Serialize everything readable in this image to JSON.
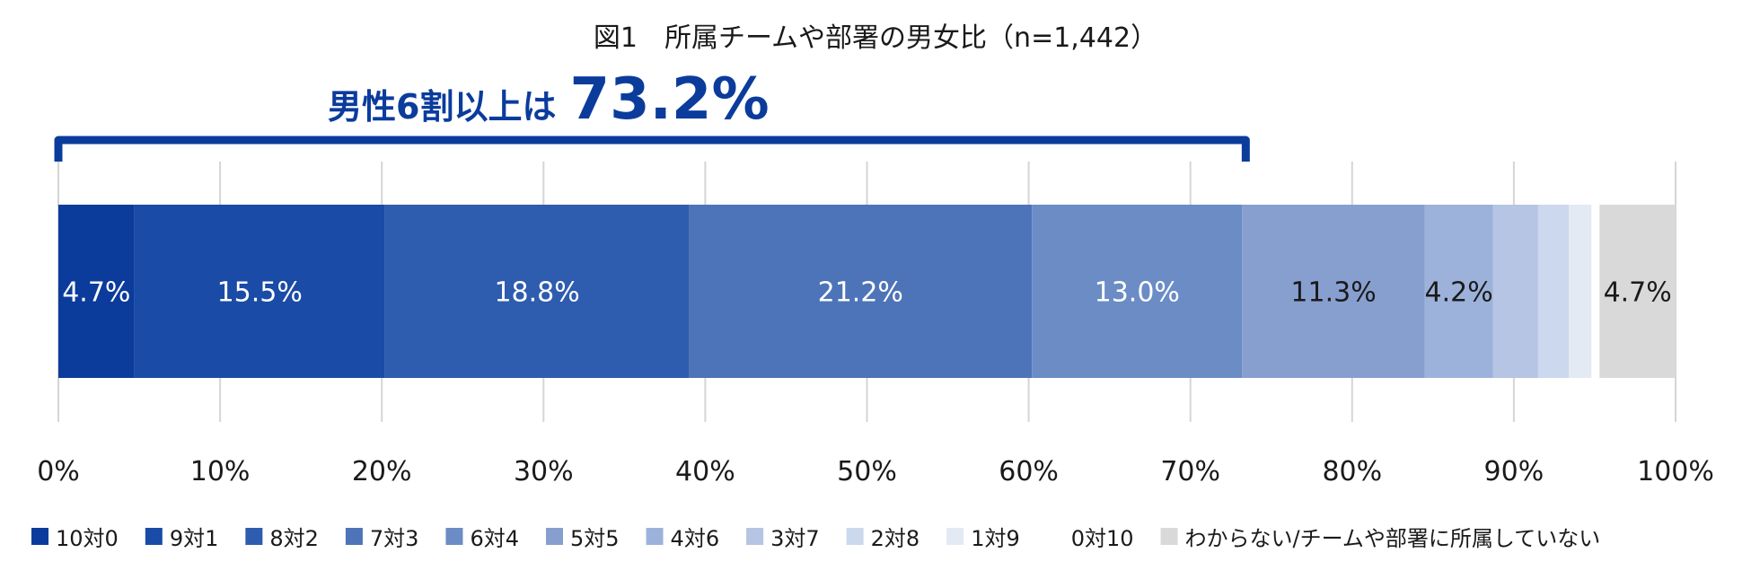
{
  "chart_data": {
    "type": "bar",
    "orientation": "horizontal",
    "stacked": true,
    "title": "図1　所属チームや部署の男女比（n=1,442）",
    "annotation": {
      "label": "男性6割以上は",
      "value": "73.2%",
      "range": [
        0,
        73.2
      ]
    },
    "xlim": [
      0,
      100
    ],
    "x_ticks": [
      "0%",
      "10%",
      "20%",
      "30%",
      "40%",
      "50%",
      "60%",
      "70%",
      "80%",
      "90%",
      "100%"
    ],
    "grid": true,
    "legend_position": "bottom",
    "series": [
      {
        "name": "10対0",
        "value": 4.7,
        "label": "4.7%",
        "color": "#0B3C9C"
      },
      {
        "name": "9対1",
        "value": 15.5,
        "label": "15.5%",
        "color": "#1A4BA6"
      },
      {
        "name": "8対2",
        "value": 18.8,
        "label": "18.8%",
        "color": "#2E5CAE"
      },
      {
        "name": "7対3",
        "value": 21.2,
        "label": "21.2%",
        "color": "#4D74B8"
      },
      {
        "name": "6対4",
        "value": 13.0,
        "label": "13.0%",
        "color": "#6B8CC5"
      },
      {
        "name": "5対5",
        "value": 11.3,
        "label": "11.3%",
        "color": "#879FCF"
      },
      {
        "name": "4対6",
        "value": 4.2,
        "label": "4.2%",
        "color": "#9DB2DA"
      },
      {
        "name": "3対7",
        "value": 2.8,
        "label": "",
        "color": "#B5C5E3"
      },
      {
        "name": "2対8",
        "value": 1.9,
        "label": "",
        "color": "#CCD8EE"
      },
      {
        "name": "1対9",
        "value": 1.4,
        "label": "",
        "color": "#E3EAF4"
      },
      {
        "name": "0対10",
        "value": 0.5,
        "label": "",
        "color": "#FFFFFF"
      },
      {
        "name": "わからない/チームや部署に所属していない",
        "value": 4.7,
        "label": "4.7%",
        "color": "#D9D9D9"
      }
    ],
    "colors": {
      "accent": "#0B3C9C",
      "grid": "#D5D5D5",
      "text": "#1A1A1A"
    }
  }
}
